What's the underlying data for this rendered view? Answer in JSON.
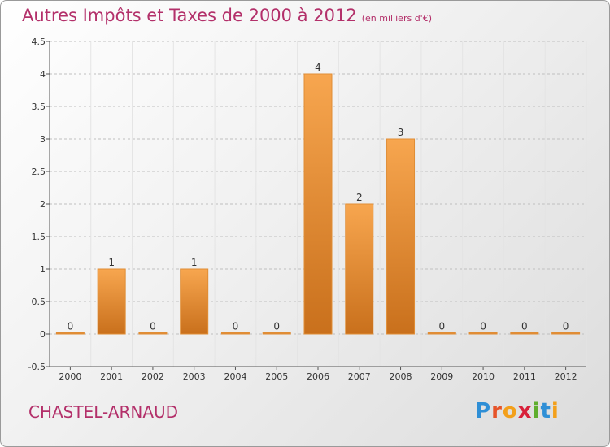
{
  "title": "Autres Impôts et Taxes de 2000 à 2012",
  "unit_note": "(en milliers d'€)",
  "commune": "CHASTEL-ARNAUD",
  "logo": {
    "text": "Proxiti",
    "letters": [
      {
        "ch": "P",
        "color": "#2f8fd6"
      },
      {
        "ch": "r",
        "color": "#e6542a"
      },
      {
        "ch": "o",
        "color": "#f3a01b"
      },
      {
        "ch": "x",
        "color": "#d8213a"
      },
      {
        "ch": "i",
        "color": "#5fae2e"
      },
      {
        "ch": "t",
        "color": "#2f8fd6"
      },
      {
        "ch": "i",
        "color": "#f3a01b"
      }
    ]
  },
  "colors": {
    "bar_light": "#f7a64f",
    "bar_dark": "#c9701c",
    "bar_edge": "#e08d35",
    "axis": "#555555",
    "grid": "#bfbfbf",
    "title": "#b3306a"
  },
  "chart_data": {
    "type": "bar",
    "categories": [
      "2000",
      "2001",
      "2002",
      "2003",
      "2004",
      "2005",
      "2006",
      "2007",
      "2008",
      "2009",
      "2010",
      "2011",
      "2012"
    ],
    "values": [
      0,
      1,
      0,
      1,
      0,
      0,
      4,
      2,
      3,
      0,
      0,
      0,
      0
    ],
    "data_labels": [
      "0",
      "1",
      "0",
      "1",
      "0",
      "0",
      "4",
      "2",
      "3",
      "0",
      "0",
      "0",
      "0"
    ],
    "ylim": [
      -0.5,
      4.5
    ],
    "y_ticks": [
      {
        "value": -0.5,
        "label": "-0.5"
      },
      {
        "value": 0,
        "label": "0"
      },
      {
        "value": 0.5,
        "label": "0.5"
      },
      {
        "value": 1,
        "label": "1"
      },
      {
        "value": 1.5,
        "label": "1.5"
      },
      {
        "value": 2,
        "label": "2"
      },
      {
        "value": 2.5,
        "label": "2.5"
      },
      {
        "value": 3,
        "label": "3"
      },
      {
        "value": 3.5,
        "label": "3.5"
      },
      {
        "value": 4,
        "label": "4"
      },
      {
        "value": 4.5,
        "label": "4.5"
      }
    ],
    "grid": "horizontal dashed"
  }
}
